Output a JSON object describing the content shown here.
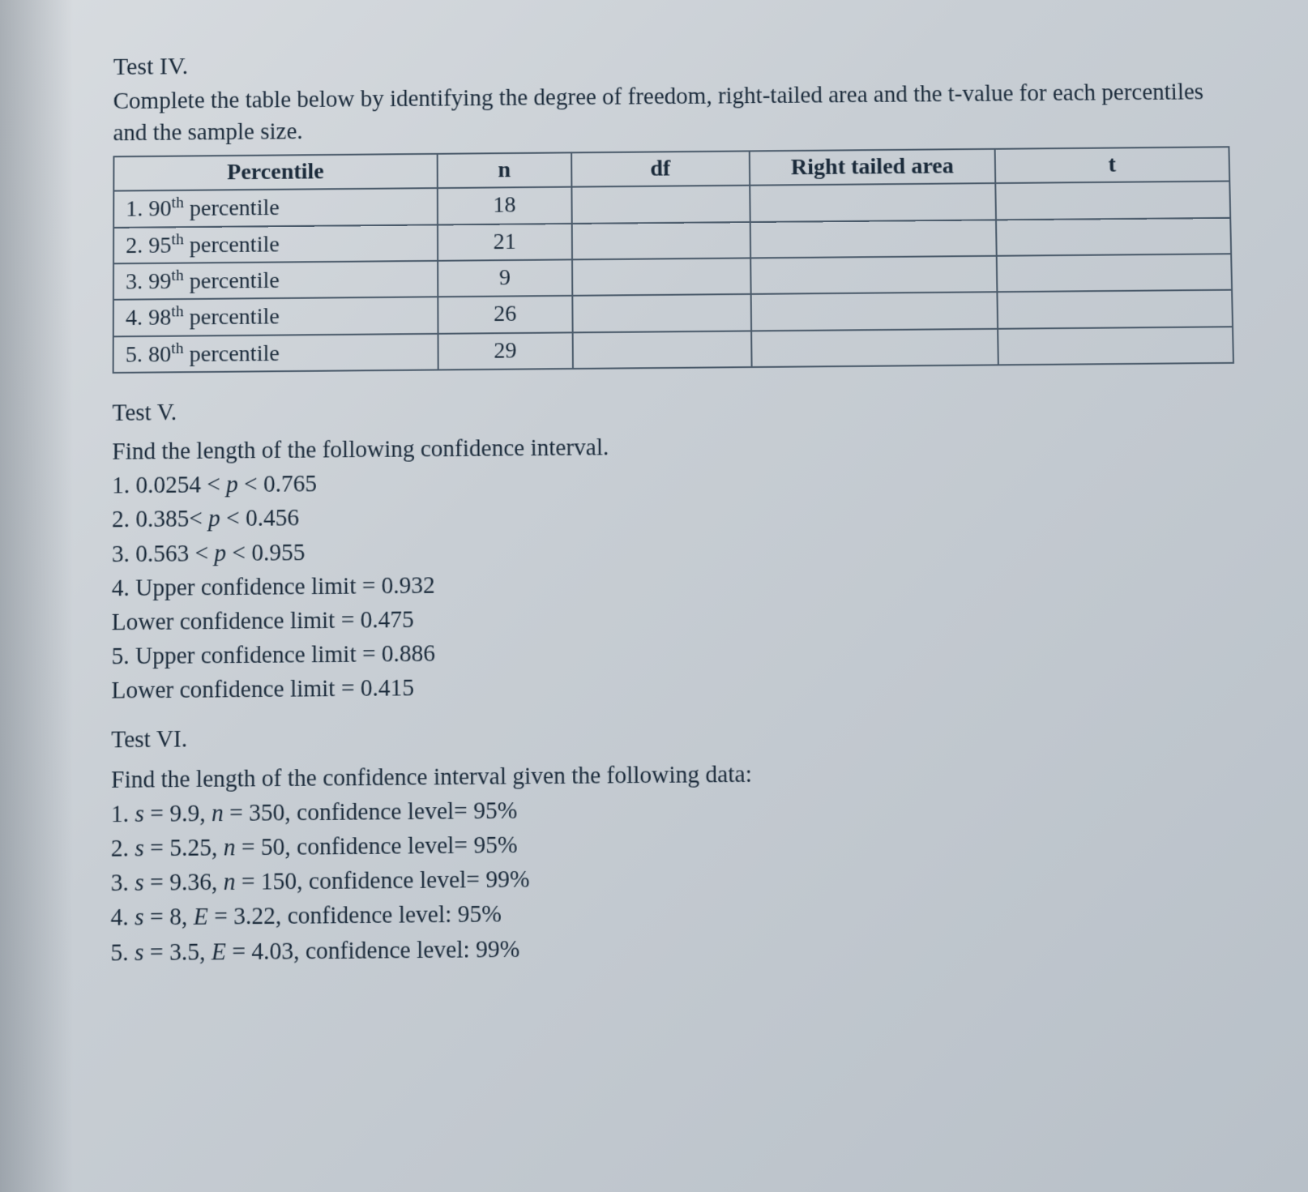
{
  "test4": {
    "title": "Test IV.",
    "instruction": "Complete the table below by identifying the degree of freedom, right-tailed area and the t-value for each percentiles and the sample size.",
    "headers": {
      "percentile": "Percentile",
      "n": "n",
      "df": "df",
      "rt": "Right tailed area",
      "t": "t"
    },
    "rows": [
      {
        "label_num": "1.",
        "label_pct": "90",
        "label_suffix": "percentile",
        "n": "18"
      },
      {
        "label_num": "2.",
        "label_pct": "95",
        "label_suffix": "percentile",
        "n": "21"
      },
      {
        "label_num": "3.",
        "label_pct": "99",
        "label_suffix": "percentile",
        "n": "9"
      },
      {
        "label_num": "4.",
        "label_pct": "98",
        "label_suffix": "percentile",
        "n": "26"
      },
      {
        "label_num": "5.",
        "label_pct": "80",
        "label_suffix": "percentile",
        "n": "29"
      }
    ]
  },
  "test5": {
    "title": "Test V.",
    "instruction": "Find the length of the following confidence interval.",
    "items": [
      "1. 0.0254 < p < 0.765",
      "2. 0.385< p < 0.456",
      "3. 0.563 < p < 0.955",
      "4. Upper confidence limit = 0.932",
      "Lower confidence limit = 0.475",
      "5. Upper confidence limit = 0.886",
      "Lower confidence limit = 0.415"
    ]
  },
  "test6": {
    "title": "Test VI.",
    "instruction": "Find the length of the confidence interval given the following data:",
    "items": [
      "1. s = 9.9, n = 350, confidence level= 95%",
      "2. s = 5.25, n = 50, confidence level= 95%",
      "3. s = 9.36, n = 150, confidence level= 99%",
      "4. s = 8,    E = 3.22, confidence level: 95%",
      "5. s = 3.5, E = 4.03, confidence level: 99%"
    ]
  },
  "style": {
    "text_color": "#1a2a3a",
    "border_color": "#4a5a6a",
    "background_gradient": [
      "#d8dce0",
      "#c8ced4",
      "#b8c0c8"
    ],
    "font_family": "Georgia, Times New Roman, serif",
    "title_fontsize": 30,
    "body_fontsize": 29,
    "table_fontsize": 28
  }
}
